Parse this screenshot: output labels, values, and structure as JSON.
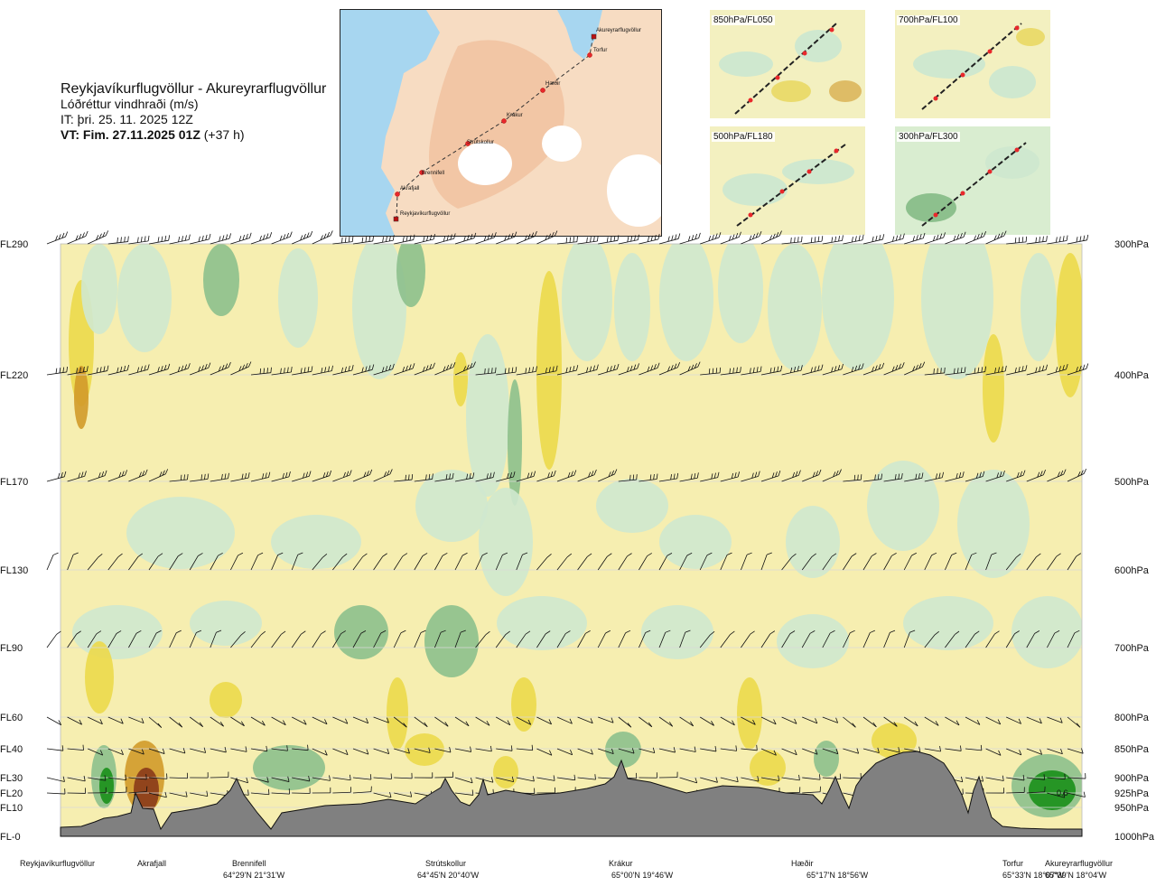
{
  "header": {
    "route": "Reykjavíkurflugvöllur - Akureyrarflugvöllur",
    "parameter": "Lóðréttur vindhraði (m/s)",
    "issued": "IT: þri. 25. 11. 2025 12Z",
    "valid_prefix": "VT: Fim. 27.11.2025 01Z",
    "valid_suffix": "(+37 h)"
  },
  "map": {
    "waypoints": [
      "Akureyrarflugvöllur",
      "Torfur",
      "Hæðir",
      "Krákur",
      "Strútskollur",
      "Brennifell",
      "Akrafjall",
      "Reykjavíkurflugvöllur"
    ]
  },
  "thumbnails": [
    {
      "label": "850hPa/FL050"
    },
    {
      "label": "700hPa/FL100"
    },
    {
      "label": "500hPa/FL180"
    },
    {
      "label": "300hPa/FL300"
    }
  ],
  "chart_data": {
    "type": "heatmap",
    "title": "Lóðréttur vindhraði (m/s)",
    "y_levels": [
      {
        "fl": "FL290",
        "hpa": "300hPa"
      },
      {
        "fl": "FL220",
        "hpa": "400hPa"
      },
      {
        "fl": "FL170",
        "hpa": "500hPa"
      },
      {
        "fl": "FL130",
        "hpa": "600hPa"
      },
      {
        "fl": "FL90",
        "hpa": "700hPa"
      },
      {
        "fl": "FL60",
        "hpa": "800hPa"
      },
      {
        "fl": "FL40",
        "hpa": "850hPa"
      },
      {
        "fl": "FL30",
        "hpa": "900hPa"
      },
      {
        "fl": "FL20",
        "hpa": "925hPa"
      },
      {
        "fl": "FL10",
        "hpa": "950hPa"
      },
      {
        "fl": "FL-0",
        "hpa": "1000hPa"
      }
    ],
    "x_stations": [
      {
        "name": "Reykjavíkurflugvöllur",
        "coord": ""
      },
      {
        "name": "Akrafjall",
        "coord": ""
      },
      {
        "name": "Brennifell",
        "coord": "64°29'N 21°31'W"
      },
      {
        "name": "Strútskollur",
        "coord": "64°45'N 20°40'W"
      },
      {
        "name": "Krákur",
        "coord": "65°00'N 19°46'W"
      },
      {
        "name": "Hæðir",
        "coord": "65°17'N 18°56'W"
      },
      {
        "name": "Torfur",
        "coord": "65°33'N 18°07'W"
      },
      {
        "name": "Akureyrarflugvöllur",
        "coord": "65°39'N 18°04'W"
      }
    ],
    "annotation": "0.6",
    "colors": {
      "strong_down": "#1a8f1a",
      "mod_down": "#8dc08d",
      "weak_down": "#cfe8cf",
      "neutral": "#f3fbea",
      "weak_up": "#f6eeb0",
      "mod_up": "#ecd94b",
      "strong_up": "#d19a2a",
      "extreme_up": "#8a3a1a",
      "terrain": "#808080"
    }
  }
}
